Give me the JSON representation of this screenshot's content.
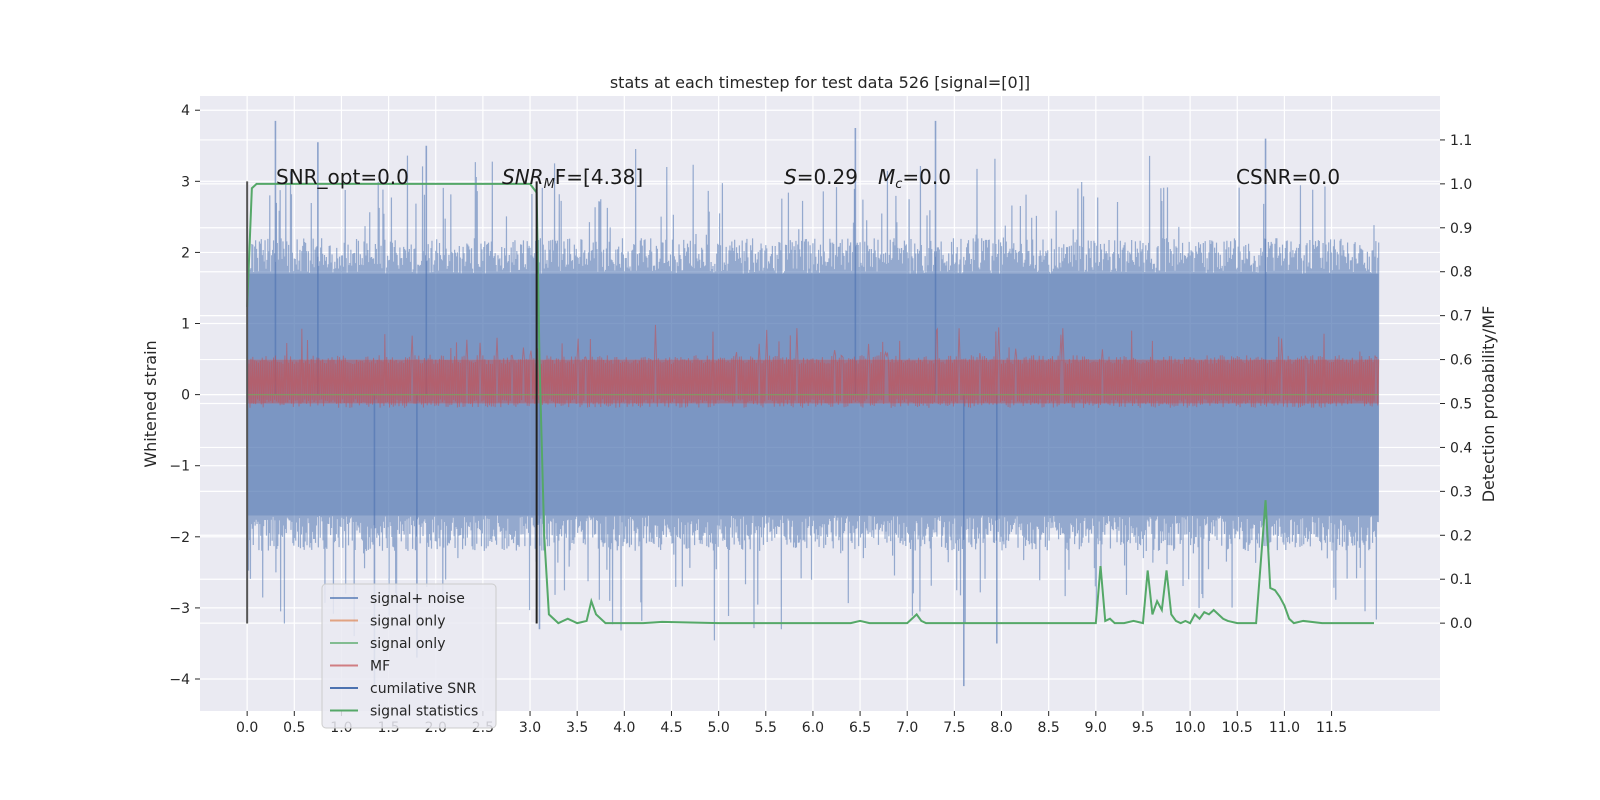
{
  "chart_data": {
    "type": "line",
    "title": "stats at each timestep for test data 526 [signal=[0]]",
    "ylabel_left": "Whitened strain",
    "ylabel_right": "Detection probability/MF",
    "xlim": [
      -0.5,
      12.65
    ],
    "ylim_left": [
      -4.45,
      4.2
    ],
    "ylim_right": [
      -0.2,
      1.2
    ],
    "x_ticks": [
      "0.0",
      "0.5",
      "1.0",
      "1.5",
      "2.0",
      "2.5",
      "3.0",
      "3.5",
      "4.0",
      "4.5",
      "5.0",
      "5.5",
      "6.0",
      "6.5",
      "7.0",
      "7.5",
      "8.0",
      "8.5",
      "9.0",
      "9.5",
      "10.0",
      "10.5",
      "11.0",
      "11.5"
    ],
    "y_ticks_left": [
      "−4",
      "−3",
      "−2",
      "−1",
      "0",
      "1",
      "2",
      "3",
      "4"
    ],
    "y_ticks_right": [
      "0.0",
      "0.1",
      "0.2",
      "0.3",
      "0.4",
      "0.5",
      "0.6",
      "0.7",
      "0.8",
      "0.9",
      "1.0",
      "1.1"
    ],
    "grid": true,
    "legend_placement": "lower-left",
    "annotations": {
      "snr_opt": "SNR_opt=0.0",
      "snr_mf_a": "SNR",
      "snr_mf_sub": "M",
      "snr_mf_b": "F=[4.38]",
      "s_val_italic": "S",
      "s_val_rest": "=0.29",
      "mc_italic": "M",
      "mc_sub": "c",
      "mc_rest": "=0.0",
      "csnr": "CSNR=0.0"
    },
    "vertical_markers": [
      {
        "x": 0.0,
        "y_range": [
          -3.22,
          3.0
        ],
        "color": "#555555"
      },
      {
        "x": 3.07,
        "y_range": [
          -3.22,
          3.0
        ],
        "color": "#222222"
      }
    ],
    "series": [
      {
        "name": "signal+ noise",
        "color": "#4c72b0",
        "axis": "left",
        "style": "noise-band",
        "x_range": [
          0.0,
          12.0
        ],
        "amplitude": 1.7,
        "peak_max": 3.85,
        "peak_min": -4.1
      },
      {
        "name": "signal only",
        "color": "#dd8452",
        "axis": "left",
        "style": "flat",
        "value": 0.0
      },
      {
        "name": "signal only",
        "color": "#55a868",
        "axis": "left",
        "style": "flat",
        "value": 0.0
      },
      {
        "name": "MF",
        "color": "#c44e52",
        "axis": "right",
        "style": "noise-band",
        "x_range": [
          0.0,
          12.0
        ],
        "low": 0.5,
        "high": 0.6,
        "peak_max": 0.68
      },
      {
        "name": "cumilative SNR",
        "color": "#4c72b0",
        "axis": "right",
        "style": "flat",
        "value": 0.0
      },
      {
        "name": "signal statistics",
        "color": "#55a868",
        "axis": "right",
        "style": "line",
        "x": [
          0.0,
          0.05,
          0.1,
          0.2,
          2.9,
          3.0,
          3.07,
          3.1,
          3.15,
          3.2,
          3.3,
          3.4,
          3.5,
          3.6,
          3.65,
          3.7,
          3.8,
          4.0,
          4.2,
          4.4,
          5.0,
          5.5,
          6.0,
          6.4,
          6.5,
          6.6,
          7.0,
          7.05,
          7.1,
          7.15,
          7.2,
          7.3,
          8.0,
          8.5,
          9.0,
          9.05,
          9.1,
          9.15,
          9.2,
          9.3,
          9.4,
          9.5,
          9.55,
          9.6,
          9.65,
          9.7,
          9.75,
          9.8,
          9.85,
          9.9,
          9.95,
          10.0,
          10.05,
          10.1,
          10.15,
          10.2,
          10.25,
          10.3,
          10.35,
          10.4,
          10.5,
          10.7,
          10.8,
          10.85,
          10.9,
          10.95,
          11.0,
          11.05,
          11.1,
          11.2,
          11.4,
          11.6,
          11.8,
          11.9,
          11.95
        ],
        "values": [
          0.72,
          0.99,
          1.0,
          1.0,
          1.0,
          1.0,
          0.98,
          0.6,
          0.2,
          0.02,
          0.0,
          0.01,
          0.0,
          0.005,
          0.05,
          0.02,
          0.0,
          0.0,
          0.0,
          0.003,
          0.0,
          0.0,
          0.0,
          0.0,
          0.005,
          0.0,
          0.0,
          0.01,
          0.02,
          0.005,
          0.0,
          0.0,
          0.0,
          0.0,
          0.0,
          0.13,
          0.005,
          0.01,
          0.0,
          0.0,
          0.005,
          0.0,
          0.12,
          0.02,
          0.05,
          0.03,
          0.12,
          0.02,
          0.005,
          0.0,
          0.005,
          0.0,
          0.02,
          0.01,
          0.025,
          0.02,
          0.03,
          0.02,
          0.01,
          0.005,
          0.0,
          0.0,
          0.28,
          0.08,
          0.075,
          0.06,
          0.04,
          0.01,
          0.0,
          0.005,
          0.0,
          0.0,
          0.0,
          0.0,
          0.0
        ]
      }
    ]
  }
}
